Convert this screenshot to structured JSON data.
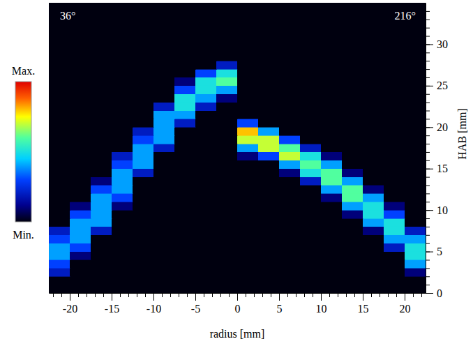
{
  "chart_data": {
    "type": "heatmap",
    "x_label": "radius [mm]",
    "y_label": "HAB [mm]",
    "annotations": [
      "36°",
      "216°"
    ],
    "xlim": [
      -22.5,
      22.5
    ],
    "ylim": [
      0,
      35
    ],
    "xticks": [
      -20,
      -15,
      -10,
      -5,
      0,
      5,
      10,
      15,
      20
    ],
    "yticks": [
      0,
      5,
      10,
      15,
      20,
      25,
      30
    ],
    "xminor_ticks": [
      -22,
      -21,
      -20,
      -19,
      -18,
      -17,
      -16,
      -15,
      -14,
      -13,
      -12,
      -11,
      -10,
      -9,
      -8,
      -7,
      -6,
      -5,
      -4,
      -3,
      -2,
      -1,
      0,
      1,
      2,
      3,
      4,
      5,
      6,
      7,
      8,
      9,
      10,
      11,
      12,
      13,
      14,
      15,
      16,
      17,
      18,
      19,
      20,
      21,
      22
    ],
    "yminor_ticks": [
      1,
      2,
      3,
      4,
      5,
      6,
      7,
      8,
      9,
      10,
      11,
      12,
      13,
      14,
      15,
      16,
      17,
      18,
      19,
      20,
      21,
      22,
      23,
      24,
      25,
      26,
      27,
      28,
      29,
      30,
      31,
      32,
      33,
      34
    ],
    "x_bins": [
      -22.5,
      -20,
      -17.5,
      -15,
      -12.5,
      -10,
      -7.5,
      -5,
      -2.5,
      0,
      2.5,
      5,
      7.5,
      10,
      12.5,
      15,
      17.5,
      20,
      22.5
    ],
    "y_bins": [
      0,
      1,
      2,
      3,
      4,
      5,
      6,
      7,
      8,
      9,
      10,
      11,
      12,
      13,
      14,
      15,
      16,
      17,
      18,
      19,
      20,
      21,
      22,
      23,
      24,
      25,
      26,
      27,
      28,
      29,
      30,
      31,
      32,
      33,
      34,
      35
    ],
    "z": [
      [
        0,
        0,
        0,
        0,
        0,
        0,
        0,
        0,
        0,
        0,
        0,
        0,
        0,
        0,
        0,
        0,
        0,
        0
      ],
      [
        0,
        0,
        0,
        0,
        0,
        0,
        0,
        0,
        0,
        0,
        0,
        0,
        0,
        0,
        0,
        0,
        0,
        0
      ],
      [
        2,
        0,
        0,
        0,
        0,
        0,
        0,
        0,
        0,
        0,
        0,
        0,
        0,
        0,
        0,
        0,
        0,
        1
      ],
      [
        3,
        0,
        0,
        0,
        0,
        0,
        0,
        0,
        0,
        0,
        0,
        0,
        0,
        0,
        0,
        0,
        0,
        4
      ],
      [
        4,
        1,
        0,
        0,
        0,
        0,
        0,
        0,
        0,
        0,
        0,
        0,
        0,
        0,
        0,
        0,
        0,
        5
      ],
      [
        4,
        3,
        0,
        0,
        0,
        0,
        0,
        0,
        0,
        0,
        0,
        0,
        0,
        0,
        0,
        0,
        2,
        5
      ],
      [
        3,
        4,
        0,
        0,
        0,
        0,
        0,
        0,
        0,
        0,
        0,
        0,
        0,
        0,
        0,
        0,
        4,
        4
      ],
      [
        2,
        4,
        2,
        0,
        0,
        0,
        0,
        0,
        0,
        0,
        0,
        0,
        0,
        0,
        0,
        1,
        5,
        2
      ],
      [
        0,
        4,
        4,
        0,
        0,
        0,
        0,
        0,
        0,
        0,
        0,
        0,
        0,
        0,
        0,
        4,
        5,
        0
      ],
      [
        0,
        3,
        4,
        0,
        0,
        0,
        0,
        0,
        0,
        0,
        0,
        0,
        0,
        0,
        1,
        5,
        3,
        0
      ],
      [
        0,
        1,
        4,
        1,
        0,
        0,
        0,
        0,
        0,
        0,
        0,
        0,
        0,
        0,
        4,
        5,
        1,
        0
      ],
      [
        0,
        0,
        4,
        3,
        0,
        0,
        0,
        0,
        0,
        0,
        0,
        0,
        0,
        1,
        6,
        4,
        0,
        0
      ],
      [
        0,
        0,
        3,
        4,
        0,
        0,
        0,
        0,
        0,
        0,
        0,
        0,
        0,
        4,
        6,
        1,
        0,
        0
      ],
      [
        0,
        0,
        1,
        4,
        0,
        0,
        0,
        0,
        0,
        0,
        0,
        0,
        2,
        6,
        4,
        0,
        0,
        0
      ],
      [
        0,
        0,
        0,
        4,
        2,
        0,
        0,
        0,
        0,
        0,
        0,
        1,
        5,
        6,
        1,
        0,
        0,
        0
      ],
      [
        0,
        0,
        0,
        3,
        4,
        0,
        0,
        0,
        0,
        0,
        0,
        4,
        6,
        4,
        0,
        0,
        0,
        0
      ],
      [
        0,
        0,
        0,
        2,
        4,
        0,
        0,
        0,
        0,
        1,
        3,
        7,
        5,
        1,
        0,
        0,
        0,
        0
      ],
      [
        0,
        0,
        0,
        0,
        4,
        2,
        0,
        0,
        0,
        4,
        7,
        6,
        2,
        0,
        0,
        0,
        0,
        0
      ],
      [
        0,
        0,
        0,
        0,
        3,
        4,
        0,
        0,
        0,
        7,
        7,
        3,
        0,
        0,
        0,
        0,
        0,
        0
      ],
      [
        0,
        0,
        0,
        0,
        2,
        4,
        0,
        0,
        0,
        8,
        4,
        0,
        0,
        0,
        0,
        0,
        0,
        0
      ],
      [
        0,
        0,
        0,
        0,
        0,
        4,
        2,
        0,
        0,
        3,
        0,
        0,
        0,
        0,
        0,
        0,
        0,
        0
      ],
      [
        0,
        0,
        0,
        0,
        0,
        4,
        4,
        0,
        0,
        0,
        0,
        0,
        0,
        0,
        0,
        0,
        0,
        0
      ],
      [
        0,
        0,
        0,
        0,
        0,
        2,
        5,
        2,
        0,
        0,
        0,
        0,
        0,
        0,
        0,
        0,
        0,
        0
      ],
      [
        0,
        0,
        0,
        0,
        0,
        0,
        5,
        4,
        1,
        0,
        0,
        0,
        0,
        0,
        0,
        0,
        0,
        0
      ],
      [
        0,
        0,
        0,
        0,
        0,
        0,
        3,
        5,
        4,
        0,
        0,
        0,
        0,
        0,
        0,
        0,
        0,
        0
      ],
      [
        0,
        0,
        0,
        0,
        0,
        0,
        1,
        5,
        6,
        0,
        0,
        0,
        0,
        0,
        0,
        0,
        0,
        0
      ],
      [
        0,
        0,
        0,
        0,
        0,
        0,
        0,
        3,
        5,
        0,
        0,
        0,
        0,
        0,
        0,
        0,
        0,
        0
      ],
      [
        0,
        0,
        0,
        0,
        0,
        0,
        0,
        0,
        2,
        0,
        0,
        0,
        0,
        0,
        0,
        0,
        0,
        0
      ],
      [
        0,
        0,
        0,
        0,
        0,
        0,
        0,
        0,
        0,
        0,
        0,
        0,
        0,
        0,
        0,
        0,
        0,
        0
      ],
      [
        0,
        0,
        0,
        0,
        0,
        0,
        0,
        0,
        0,
        0,
        0,
        0,
        0,
        0,
        0,
        0,
        0,
        0
      ],
      [
        0,
        0,
        0,
        0,
        0,
        0,
        0,
        0,
        0,
        0,
        0,
        0,
        0,
        0,
        0,
        0,
        0,
        0
      ],
      [
        0,
        0,
        0,
        0,
        0,
        0,
        0,
        0,
        0,
        0,
        0,
        0,
        0,
        0,
        0,
        0,
        0,
        0
      ],
      [
        0,
        0,
        0,
        0,
        0,
        0,
        0,
        0,
        0,
        0,
        0,
        0,
        0,
        0,
        0,
        0,
        0,
        0
      ],
      [
        0,
        0,
        0,
        0,
        0,
        0,
        0,
        0,
        0,
        0,
        0,
        0,
        0,
        0,
        0,
        0,
        0,
        0
      ],
      [
        0,
        0,
        0,
        0,
        0,
        0,
        0,
        0,
        0,
        0,
        0,
        0,
        0,
        0,
        0,
        0,
        0,
        0
      ]
    ],
    "colorbar": {
      "range": [
        0,
        10
      ],
      "ticks": [
        {
          "value": 10,
          "label": "Max."
        },
        {
          "value": 0,
          "label": "Min."
        }
      ]
    }
  }
}
